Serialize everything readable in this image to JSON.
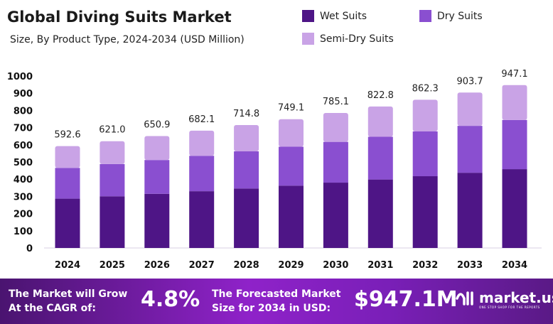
{
  "chart_data": {
    "type": "bar",
    "stacked": true,
    "title": "Global Diving Suits Market",
    "subtitle": "Size, By Product Type, 2024-2034 (USD Million)",
    "categories": [
      "2024",
      "2025",
      "2026",
      "2027",
      "2028",
      "2029",
      "2030",
      "2031",
      "2032",
      "2033",
      "2034"
    ],
    "series": [
      {
        "name": "Wet Suits",
        "color": "#4e1586",
        "values": [
          286.8,
          300.6,
          315.0,
          330.1,
          346.0,
          362.6,
          380.0,
          398.2,
          417.3,
          437.4,
          458.4
        ]
      },
      {
        "name": "Dry Suits",
        "color": "#8a4fd0",
        "values": [
          179.0,
          187.5,
          196.6,
          206.0,
          215.9,
          226.2,
          237.1,
          248.5,
          260.4,
          272.9,
          286.0
        ]
      },
      {
        "name": "Semi-Dry Suits",
        "color": "#c9a3e6",
        "values": [
          126.8,
          132.9,
          139.3,
          146.0,
          152.9,
          160.3,
          168.0,
          176.1,
          184.6,
          193.4,
          202.7
        ]
      }
    ],
    "totals": [
      "592.6",
      "621.0",
      "650.9",
      "682.1",
      "714.8",
      "749.1",
      "785.1",
      "822.8",
      "862.3",
      "903.7",
      "947.1"
    ],
    "yticks": [
      "0",
      "100",
      "200",
      "300",
      "400",
      "500",
      "600",
      "700",
      "800",
      "900",
      "1000"
    ],
    "ylim": [
      0,
      1000
    ],
    "grid": false,
    "legend": "top-right"
  },
  "banner": {
    "cagr_label": "The Market will Grow At the CAGR of:",
    "cagr_value": "4.8%",
    "forecast_label": "The Forecasted Market Size for 2034 in USD:",
    "forecast_value": "$947.1M",
    "brand": "market.us",
    "brand_tagline": "ONE STOP SHOP FOR THE REPORTS"
  }
}
